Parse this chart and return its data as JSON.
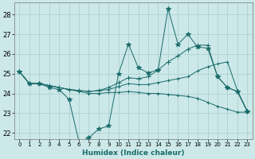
{
  "title": "",
  "xlabel": "Humidex (Indice chaleur)",
  "background_color": "#cce8e8",
  "grid_color": "#aacccc",
  "line_color": "#1a6b6b",
  "xlim": [
    -0.5,
    23.5
  ],
  "ylim": [
    21.7,
    28.6
  ],
  "yticks": [
    22,
    23,
    24,
    25,
    26,
    27,
    28
  ],
  "xticks": [
    0,
    1,
    2,
    3,
    4,
    5,
    6,
    7,
    8,
    9,
    10,
    11,
    12,
    13,
    14,
    15,
    16,
    17,
    18,
    19,
    20,
    21,
    22,
    23
  ],
  "series": [
    {
      "y": [
        25.1,
        24.5,
        24.5,
        24.3,
        24.2,
        23.7,
        21.55,
        21.75,
        22.2,
        22.35,
        25.0,
        26.5,
        25.3,
        25.05,
        25.2,
        28.3,
        26.5,
        27.0,
        26.35,
        26.3,
        24.85,
        24.3,
        24.1,
        23.1
      ],
      "marker": "*",
      "ms": 4
    },
    {
      "y": [
        25.1,
        24.5,
        24.5,
        24.4,
        24.3,
        24.2,
        24.15,
        24.1,
        24.15,
        24.3,
        24.55,
        24.8,
        24.75,
        24.85,
        25.2,
        25.6,
        25.9,
        26.25,
        26.45,
        26.45,
        24.85,
        24.3,
        24.1,
        23.1
      ],
      "marker": "+",
      "ms": 4
    },
    {
      "y": [
        25.1,
        24.5,
        24.5,
        24.4,
        24.3,
        24.2,
        24.15,
        24.1,
        24.15,
        24.2,
        24.35,
        24.5,
        24.45,
        24.45,
        24.55,
        24.65,
        24.75,
        24.85,
        25.15,
        25.35,
        25.5,
        25.6,
        24.15,
        23.1
      ],
      "marker": "+",
      "ms": 3
    },
    {
      "y": [
        25.1,
        24.5,
        24.5,
        24.4,
        24.3,
        24.2,
        24.1,
        24.0,
        24.0,
        24.05,
        24.05,
        24.1,
        24.05,
        24.0,
        24.0,
        23.95,
        23.9,
        23.85,
        23.75,
        23.55,
        23.35,
        23.2,
        23.05,
        23.05
      ],
      "marker": "+",
      "ms": 3
    }
  ]
}
